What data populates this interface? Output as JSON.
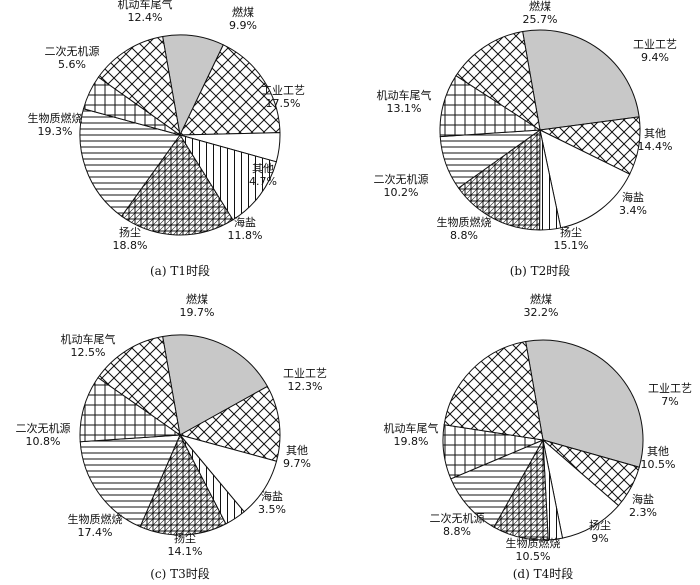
{
  "chart_data": [
    {
      "type": "pie",
      "caption": "(a)  T1时段",
      "slices": [
        {
          "name": "燃煤",
          "value": 9.9,
          "pct": "9.9%"
        },
        {
          "name": "工业工艺",
          "value": 17.5,
          "pct": "17.5%"
        },
        {
          "name": "其他",
          "value": 4.7,
          "pct": "4.7%"
        },
        {
          "name": "海盐",
          "value": 11.8,
          "pct": "11.8%"
        },
        {
          "name": "扬尘",
          "value": 18.8,
          "pct": "18.8%"
        },
        {
          "name": "生物质燃烧",
          "value": 19.3,
          "pct": "19.3%"
        },
        {
          "name": "二次无机源",
          "value": 5.6,
          "pct": "5.6%"
        },
        {
          "name": "机动车尾气",
          "value": 12.4,
          "pct": "12.4%"
        }
      ]
    },
    {
      "type": "pie",
      "caption": "(b)  T2时段",
      "slices": [
        {
          "name": "燃煤",
          "value": 25.7,
          "pct": "25.7%"
        },
        {
          "name": "工业工艺",
          "value": 9.4,
          "pct": "9.4%"
        },
        {
          "name": "其他",
          "value": 14.4,
          "pct": "14.4%"
        },
        {
          "name": "海盐",
          "value": 3.4,
          "pct": "3.4%"
        },
        {
          "name": "扬尘",
          "value": 15.1,
          "pct": "15.1%"
        },
        {
          "name": "生物质燃烧",
          "value": 8.8,
          "pct": "8.8%"
        },
        {
          "name": "二次无机源",
          "value": 10.2,
          "pct": "10.2%"
        },
        {
          "name": "机动车尾气",
          "value": 13.1,
          "pct": "13.1%"
        }
      ]
    },
    {
      "type": "pie",
      "caption": "(c)  T3时段",
      "slices": [
        {
          "name": "燃煤",
          "value": 19.7,
          "pct": "19.7%"
        },
        {
          "name": "工业工艺",
          "value": 12.3,
          "pct": "12.3%"
        },
        {
          "name": "其他",
          "value": 9.7,
          "pct": "9.7%"
        },
        {
          "name": "海盐",
          "value": 3.5,
          "pct": "3.5%"
        },
        {
          "name": "扬尘",
          "value": 14.1,
          "pct": "14.1%"
        },
        {
          "name": "生物质燃烧",
          "value": 17.4,
          "pct": "17.4%"
        },
        {
          "name": "二次无机源",
          "value": 10.8,
          "pct": "10.8%"
        },
        {
          "name": "机动车尾气",
          "value": 12.5,
          "pct": "12.5%"
        }
      ]
    },
    {
      "type": "pie",
      "caption": "(d)  T4时段",
      "slices": [
        {
          "name": "燃煤",
          "value": 32.2,
          "pct": "32.2%"
        },
        {
          "name": "工业工艺",
          "value": 7,
          "pct": "7%"
        },
        {
          "name": "其他",
          "value": 10.5,
          "pct": "10.5%"
        },
        {
          "name": "海盐",
          "value": 2.3,
          "pct": "2.3%"
        },
        {
          "name": "扬尘",
          "value": 9,
          "pct": "9%"
        },
        {
          "name": "生物质燃烧",
          "value": 10.5,
          "pct": "10.5%"
        },
        {
          "name": "二次无机源",
          "value": 8.8,
          "pct": "8.8%"
        },
        {
          "name": "机动车尾气",
          "value": 19.8,
          "pct": "19.8%"
        }
      ]
    }
  ],
  "source_colors": {
    "燃煤": "#c8c8c8",
    "工业工艺": "#ffffff",
    "其他": "#ffffff",
    "海盐": "#ffffff",
    "扬尘": "#ffffff",
    "生物质燃烧": "#ffffff",
    "二次无机源": "#ffffff",
    "机动车尾气": "#ffffff"
  }
}
